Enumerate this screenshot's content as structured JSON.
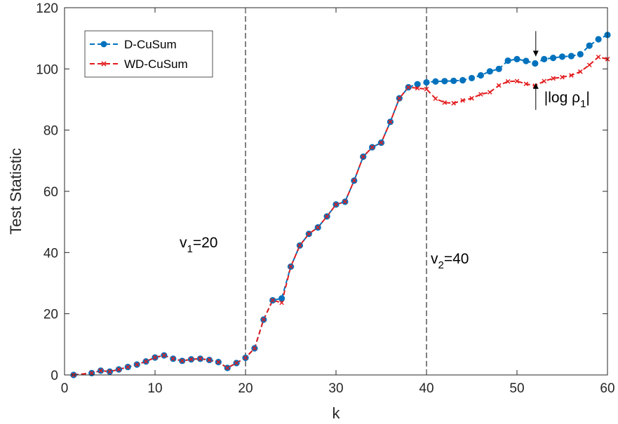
{
  "chart_data": {
    "type": "line",
    "title": "",
    "xlabel": "k",
    "ylabel": "Test Statistic",
    "xlim": [
      0,
      60
    ],
    "ylim": [
      0,
      120
    ],
    "xticks": [
      0,
      10,
      20,
      30,
      40,
      50,
      60
    ],
    "yticks": [
      0,
      20,
      40,
      60,
      80,
      100,
      120
    ],
    "grid": false,
    "legend_position": "top-left",
    "series": [
      {
        "name": "D-CuSum",
        "color": "#0072BD",
        "line_style": "dashed",
        "marker": "circle",
        "x": [
          1,
          3,
          4,
          5,
          6,
          7,
          8,
          9,
          10,
          11,
          12,
          13,
          14,
          15,
          16,
          17,
          18,
          19,
          20,
          21,
          22,
          23,
          24,
          25,
          26,
          27,
          28,
          29,
          30,
          31,
          32,
          33,
          34,
          35,
          36,
          37,
          38,
          39,
          40,
          41,
          42,
          43,
          44,
          45,
          46,
          47,
          48,
          49,
          50,
          51,
          52,
          53,
          54,
          55,
          56,
          57,
          58,
          59,
          60
        ],
        "y": [
          0,
          0.6,
          1.4,
          1.1,
          1.8,
          2.6,
          3.4,
          4.4,
          5.7,
          6.4,
          5.3,
          4.6,
          5.1,
          5.3,
          4.9,
          4.2,
          2.3,
          3.9,
          5.6,
          8.7,
          18.1,
          24.4,
          25.0,
          35.4,
          42.3,
          46.1,
          48.2,
          51.8,
          55.7,
          56.6,
          63.5,
          71.3,
          74.4,
          75.9,
          82.7,
          90.4,
          94.0,
          95.0,
          95.6,
          95.9,
          96.0,
          96.1,
          96.3,
          97.0,
          97.9,
          99.2,
          100.0,
          102.7,
          103.2,
          102.6,
          101.8,
          103.2,
          103.6,
          104.0,
          104.2,
          104.8,
          107.6,
          109.7,
          111.1
        ]
      },
      {
        "name": "WD-CuSum",
        "color": "#E31A1C",
        "line_style": "dashed",
        "marker": "x",
        "x": [
          1,
          3,
          4,
          5,
          6,
          7,
          8,
          9,
          10,
          11,
          12,
          13,
          14,
          15,
          16,
          17,
          18,
          19,
          20,
          21,
          22,
          23,
          24,
          25,
          26,
          27,
          28,
          29,
          30,
          31,
          32,
          33,
          34,
          35,
          36,
          37,
          38,
          39,
          40,
          41,
          42,
          43,
          44,
          45,
          46,
          47,
          48,
          49,
          50,
          51,
          52,
          53,
          54,
          55,
          56,
          57,
          58,
          59,
          60
        ],
        "y": [
          0,
          0.6,
          1.4,
          1.1,
          1.8,
          2.6,
          3.4,
          4.4,
          5.7,
          6.4,
          5.3,
          4.6,
          5.1,
          5.3,
          4.9,
          4.2,
          2.3,
          3.9,
          5.6,
          8.7,
          18.1,
          24.4,
          23.6,
          35.4,
          42.3,
          46.1,
          48.2,
          51.8,
          55.7,
          56.6,
          63.5,
          71.3,
          74.4,
          75.9,
          82.7,
          90.4,
          94.0,
          93.7,
          93.4,
          90.3,
          89.0,
          88.8,
          89.7,
          90.4,
          91.7,
          92.4,
          94.6,
          95.9,
          96.0,
          95.1,
          94.5,
          96.0,
          96.9,
          97.3,
          97.9,
          99.1,
          101.3,
          103.9,
          103.2
        ]
      }
    ],
    "vlines": [
      {
        "x": 20,
        "label_main": "v",
        "label_sub": "1",
        "label_rest": "=20"
      },
      {
        "x": 40,
        "label_main": "v",
        "label_sub": "2",
        "label_rest": "=40"
      }
    ],
    "annotation": {
      "x": 52,
      "y_top": 103.2,
      "y_bottom": 96.0,
      "text_main": "|log ρ",
      "text_sub": "1",
      "text_rest": "|"
    }
  }
}
